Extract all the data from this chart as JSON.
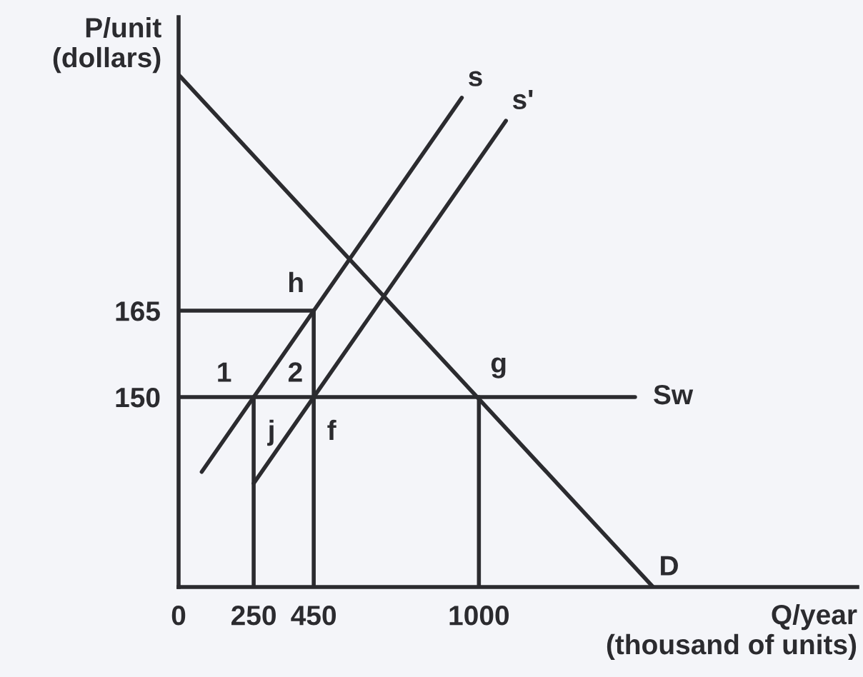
{
  "chart_data": {
    "type": "line",
    "xlabel": "Q/year\n(thousand of units)",
    "ylabel": "P/unit\n(dollars)",
    "xlim": [
      0,
      2260
    ],
    "ylim": [
      117,
      216
    ],
    "xticks": [
      0,
      250,
      450,
      1000
    ],
    "yticks": [
      150,
      165
    ],
    "series": [
      {
        "name": "s",
        "color": "#2b2b2f",
        "x": [
          77,
          943
        ],
        "values": [
          137,
          202
        ]
      },
      {
        "name": "s'",
        "color": "#2b2b2f",
        "x": [
          250,
          1090
        ],
        "values": [
          135,
          198
        ]
      },
      {
        "name": "Sw",
        "color": "#2b2b2f",
        "x": [
          0,
          1520
        ],
        "values": [
          150,
          150
        ]
      },
      {
        "name": "D",
        "color": "#2b2b2f",
        "x": [
          0,
          1580
        ],
        "values": [
          206,
          117
        ]
      },
      {
        "color": "#2b2b2f",
        "x": [
          0,
          450
        ],
        "values": [
          165,
          165
        ]
      },
      {
        "color": "#2b2b2f",
        "x": [
          250,
          250
        ],
        "values": [
          117,
          150
        ]
      },
      {
        "color": "#2b2b2f",
        "x": [
          450,
          450
        ],
        "values": [
          117,
          165
        ]
      },
      {
        "color": "#2b2b2f",
        "x": [
          1000,
          1000
        ],
        "values": [
          117,
          150
        ]
      }
    ],
    "annotations": [
      {
        "text": "h",
        "x": 450,
        "y": 165
      },
      {
        "text": "j",
        "x": 250,
        "y": 150
      },
      {
        "text": "f",
        "x": 450,
        "y": 150
      },
      {
        "text": "g",
        "x": 1000,
        "y": 150
      },
      "1",
      "2"
    ]
  }
}
